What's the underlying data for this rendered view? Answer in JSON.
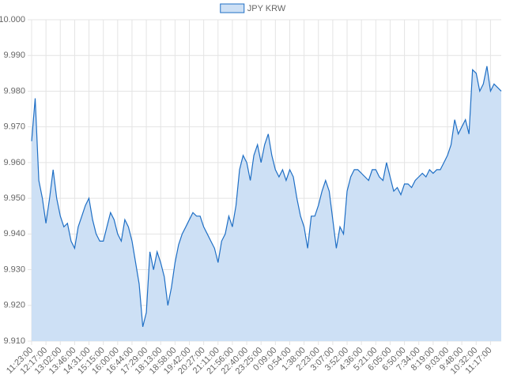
{
  "chart_data": {
    "type": "area",
    "categories": [
      "11:23:00",
      null,
      null,
      null,
      "12:17:00",
      null,
      null,
      null,
      "13:02:00",
      null,
      null,
      null,
      "13:46:00",
      null,
      null,
      null,
      "14:31:00",
      null,
      null,
      null,
      "15:15:00",
      null,
      null,
      null,
      "16:00:00",
      null,
      null,
      null,
      "16:44:00",
      null,
      null,
      null,
      "17:29:00",
      null,
      null,
      null,
      "18:13:00",
      null,
      null,
      null,
      "18:58:00",
      null,
      null,
      null,
      "19:42:00",
      null,
      null,
      null,
      "20:27:00",
      null,
      null,
      null,
      "21:11:00",
      null,
      null,
      null,
      "21:56:00",
      null,
      null,
      null,
      "22:40:00",
      null,
      null,
      null,
      "23:25:00",
      null,
      null,
      null,
      "0:09:00",
      null,
      null,
      null,
      "0:54:00",
      null,
      null,
      null,
      "1:38:00",
      null,
      null,
      null,
      "2:23:00",
      null,
      null,
      null,
      "3:07:00",
      null,
      null,
      null,
      "3:52:00",
      null,
      null,
      null,
      "4:36:00",
      null,
      null,
      null,
      "5:21:00",
      null,
      null,
      null,
      "6:05:00",
      null,
      null,
      null,
      "6:50:00",
      null,
      null,
      null,
      "7:34:00",
      null,
      null,
      null,
      "8:19:00",
      null,
      null,
      null,
      "9:03:00",
      null,
      null,
      null,
      "9:48:00",
      null,
      null,
      null,
      "10:32:00",
      null,
      null,
      null,
      "11:17:00",
      null,
      null,
      null
    ],
    "series": [
      {
        "name": "JPY KRW",
        "color": "#1f6fc5",
        "fill": "#cde0f5",
        "values": [
          9.966,
          9.978,
          9.955,
          9.95,
          9.943,
          9.95,
          9.958,
          9.95,
          9.945,
          9.942,
          9.943,
          9.938,
          9.936,
          9.942,
          9.945,
          9.948,
          9.95,
          9.944,
          9.94,
          9.938,
          9.938,
          9.942,
          9.946,
          9.944,
          9.94,
          9.938,
          9.944,
          9.942,
          9.938,
          9.932,
          9.926,
          9.914,
          9.918,
          9.935,
          9.93,
          9.935,
          9.932,
          9.928,
          9.92,
          9.925,
          9.932,
          9.937,
          9.94,
          9.942,
          9.944,
          9.946,
          9.945,
          9.945,
          9.942,
          9.94,
          9.938,
          9.936,
          9.932,
          9.938,
          9.94,
          9.945,
          9.942,
          9.948,
          9.958,
          9.962,
          9.96,
          9.955,
          9.962,
          9.965,
          9.96,
          9.965,
          9.968,
          9.962,
          9.958,
          9.956,
          9.958,
          9.955,
          9.958,
          9.956,
          9.95,
          9.945,
          9.942,
          9.936,
          9.945,
          9.945,
          9.948,
          9.952,
          9.955,
          9.952,
          9.944,
          9.936,
          9.942,
          9.94,
          9.952,
          9.956,
          9.958,
          9.958,
          9.957,
          9.956,
          9.955,
          9.958,
          9.958,
          9.956,
          9.955,
          9.96,
          9.956,
          9.952,
          9.953,
          9.951,
          9.954,
          9.954,
          9.953,
          9.955,
          9.956,
          9.957,
          9.956,
          9.958,
          9.957,
          9.958,
          9.958,
          9.96,
          9.962,
          9.965,
          9.972,
          9.968,
          9.97,
          9.972,
          9.968,
          9.986,
          9.985,
          9.98,
          9.982,
          9.987,
          9.98,
          9.982,
          9.981,
          9.98
        ]
      }
    ],
    "ylim": [
      9.91,
      10.0
    ],
    "yticks": [
      {
        "value": 9.91,
        "label": "9.910"
      },
      {
        "value": 9.92,
        "label": "9.920"
      },
      {
        "value": 9.93,
        "label": "9.930"
      },
      {
        "value": 9.94,
        "label": "9.940"
      },
      {
        "value": 9.95,
        "label": "9.950"
      },
      {
        "value": 9.96,
        "label": "9.960"
      },
      {
        "value": 9.97,
        "label": "9.970"
      },
      {
        "value": 9.98,
        "label": "9.980"
      },
      {
        "value": 9.99,
        "label": "9.990"
      },
      {
        "value": 10.0,
        "label": "10.000"
      }
    ],
    "grid": true,
    "legend": "top"
  }
}
